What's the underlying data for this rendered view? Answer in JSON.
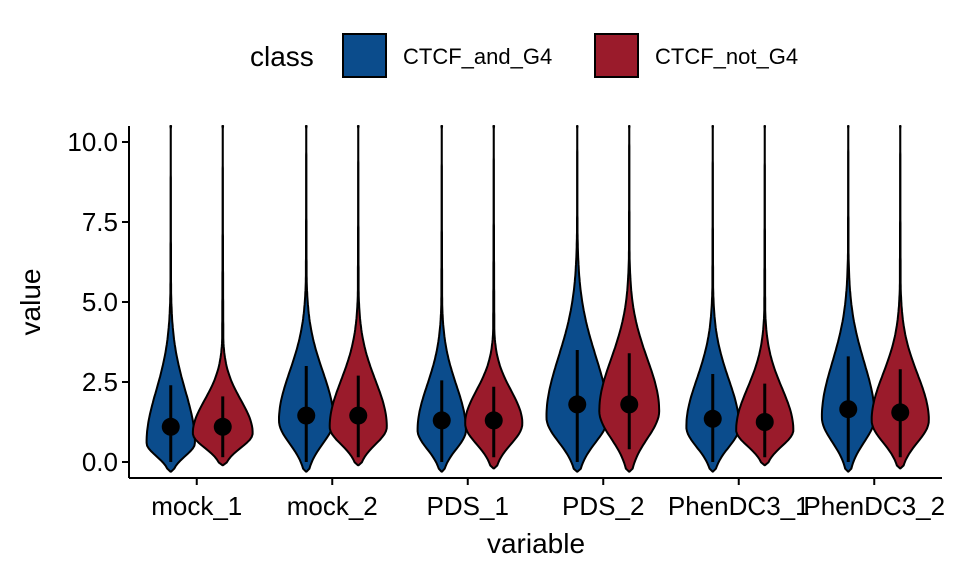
{
  "chart_data": {
    "type": "violin",
    "title": "",
    "xlabel": "variable",
    "ylabel": "value",
    "ylim": [
      -0.5,
      10.5
    ],
    "yticks": [
      0.0,
      2.5,
      5.0,
      7.5,
      10.0
    ],
    "ytick_labels": [
      "0.0",
      "2.5",
      "5.0",
      "7.5",
      "10.0"
    ],
    "categories": [
      "mock_1",
      "mock_2",
      "PDS_1",
      "PDS_2",
      "PhenDC3_1",
      "PhenDC3_2"
    ],
    "legend": {
      "title": "class",
      "position": "top"
    },
    "colors": {
      "CTCF_and_G4": "#0b4c8c",
      "CTCF_not_G4": "#9a1b2b"
    },
    "series": [
      {
        "name": "CTCF_and_G4",
        "color": "#0b4c8c",
        "median": [
          1.1,
          1.45,
          1.3,
          1.8,
          1.35,
          1.65
        ],
        "whisker_low": [
          0.0,
          0.0,
          0.0,
          0.0,
          0.0,
          0.0
        ],
        "whisker_high": [
          2.4,
          3.0,
          2.55,
          3.5,
          2.75,
          3.3
        ],
        "violin_min": [
          -0.3,
          -0.3,
          -0.3,
          -0.3,
          -0.3,
          -0.3
        ],
        "violin_max": [
          10.5,
          10.5,
          10.5,
          10.5,
          10.5,
          10.5
        ],
        "density_peak": [
          0.6,
          1.3,
          1.0,
          1.4,
          1.1,
          1.4
        ],
        "density_max_width": [
          0.55,
          0.62,
          0.55,
          0.7,
          0.6,
          0.6
        ]
      },
      {
        "name": "CTCF_not_G4",
        "color": "#9a1b2b",
        "median": [
          1.1,
          1.45,
          1.3,
          1.8,
          1.25,
          1.55
        ],
        "whisker_low": [
          0.15,
          0.15,
          0.15,
          0.4,
          0.15,
          0.15
        ],
        "whisker_high": [
          2.05,
          2.7,
          2.35,
          3.4,
          2.45,
          2.9
        ],
        "violin_min": [
          -0.1,
          -0.1,
          -0.2,
          -0.3,
          -0.1,
          -0.2
        ],
        "violin_max": [
          10.5,
          10.5,
          10.5,
          10.5,
          10.5,
          10.5
        ],
        "density_peak": [
          0.9,
          1.1,
          1.2,
          1.6,
          1.0,
          1.3
        ],
        "density_max_width": [
          0.68,
          0.65,
          0.65,
          0.68,
          0.65,
          0.65
        ]
      }
    ]
  }
}
